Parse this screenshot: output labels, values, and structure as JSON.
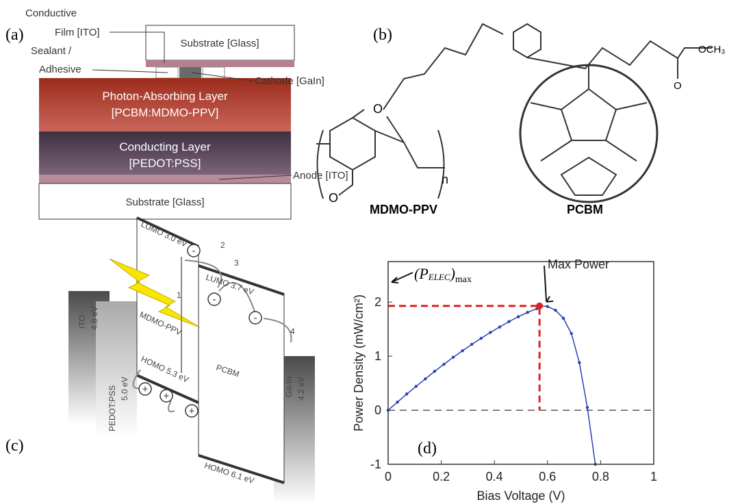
{
  "panel_a": {
    "label": "(a)",
    "conductive_film": [
      "Conductive",
      "Film [ITO]"
    ],
    "sealant": [
      "Sealant /",
      "Adhesive"
    ],
    "substrate_top": "Substrate [Glass]",
    "cathode": "Cathode [GaIn]",
    "photon_layer": [
      "Photon-Absorbing Layer",
      "[PCBM:MDMO-PPV]"
    ],
    "conducting_layer": [
      "Conducting Layer",
      "[PEDOT:PSS]"
    ],
    "anode": "Anode [ITO]",
    "substrate_bottom": "Substrate [Glass]"
  },
  "panel_b": {
    "label": "(b)",
    "mdmo_ppv": "MDMO-PPV",
    "pcbm": "PCBM",
    "oxygen": "O",
    "methoxy": "OCH₃",
    "repeat": "n"
  },
  "panel_c": {
    "label": "(c)",
    "donor_lumo": "LUMO 3.0 eV",
    "donor_name": "MDMO-PPV",
    "donor_homo": "HOMO 5.3 eV",
    "acceptor_lumo": "LUMO 3.7 eV",
    "acceptor_name": "PCBM",
    "acceptor_homo": "HOMO 6.1 eV",
    "ito": [
      "ITO",
      "4.8 eV"
    ],
    "pedot": [
      "PEDOT:PSS",
      "5.0 eV"
    ],
    "gain": [
      "Ga-In",
      "4.2 eV"
    ],
    "steps": [
      "1",
      "2",
      "3",
      "4"
    ],
    "electron": "-",
    "hole": "+"
  },
  "chart_data": {
    "type": "line",
    "label": "(d)",
    "x_label": "Bias Voltage (V)",
    "y_label": "Power Density (mW/cm²)",
    "x": [
      0,
      0.035,
      0.07,
      0.105,
      0.14,
      0.175,
      0.21,
      0.245,
      0.28,
      0.315,
      0.35,
      0.385,
      0.42,
      0.455,
      0.49,
      0.525,
      0.56,
      0.57,
      0.6,
      0.63,
      0.66,
      0.69,
      0.72,
      0.75,
      0.78
    ],
    "series": [
      {
        "color": "#2b3fb3",
        "values": [
          0,
          0.15,
          0.3,
          0.44,
          0.58,
          0.72,
          0.85,
          0.98,
          1.1,
          1.22,
          1.33,
          1.44,
          1.54,
          1.64,
          1.73,
          1.81,
          1.88,
          1.93,
          1.92,
          1.85,
          1.7,
          1.42,
          0.88,
          0.05,
          -1
        ]
      }
    ],
    "xlim": [
      0,
      1
    ],
    "ylim": [
      -1,
      2.75
    ],
    "xticks": [
      0,
      0.2,
      0.4,
      0.6,
      0.8,
      1
    ],
    "yticks": [
      -1,
      0,
      1,
      2
    ],
    "hline": 0,
    "max_power": {
      "label": "Max Power",
      "x": 0.57,
      "y": 1.93,
      "color": "#e02020"
    },
    "pelec": {
      "open": "(P",
      "sub": "ELEC",
      "close": ")",
      "subscript": "max"
    }
  }
}
